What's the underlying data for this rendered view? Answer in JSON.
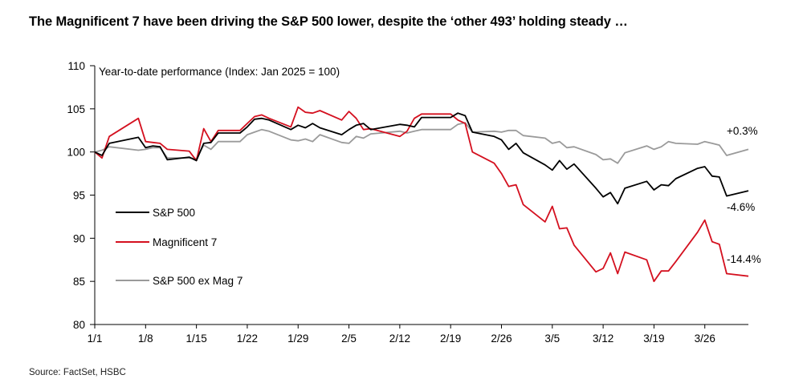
{
  "title": "The Magnificent 7 have been driving the S&P 500 lower, despite the ‘other 493’ holding steady …",
  "source": "Source: FactSet, HSBC",
  "colors": {
    "sp500": "#000000",
    "mag7": "#d4101f",
    "ex_mag7": "#9a9a9a",
    "axis": "#000000"
  },
  "chart_data": {
    "type": "line",
    "title": "Year-to-date performance (Index: Jan 2025 = 100)",
    "xlabel": "",
    "ylabel": "",
    "ylim": [
      80,
      110
    ],
    "yticks": [
      80,
      85,
      90,
      95,
      100,
      105,
      110
    ],
    "xticks": [
      {
        "x": 0,
        "label": "1/1"
      },
      {
        "x": 7,
        "label": "1/8"
      },
      {
        "x": 14,
        "label": "1/15"
      },
      {
        "x": 21,
        "label": "1/22"
      },
      {
        "x": 28,
        "label": "1/29"
      },
      {
        "x": 35,
        "label": "2/5"
      },
      {
        "x": 42,
        "label": "2/12"
      },
      {
        "x": 49,
        "label": "2/19"
      },
      {
        "x": 56,
        "label": "2/26"
      },
      {
        "x": 63,
        "label": "3/5"
      },
      {
        "x": 70,
        "label": "3/12"
      },
      {
        "x": 77,
        "label": "3/19"
      },
      {
        "x": 84,
        "label": "3/26"
      }
    ],
    "x": [
      0,
      1,
      2,
      6,
      7,
      8,
      9,
      10,
      13,
      14,
      15,
      16,
      17,
      20,
      21,
      22,
      23,
      24,
      27,
      28,
      29,
      30,
      31,
      34,
      35,
      36,
      37,
      38,
      42,
      43,
      44,
      45,
      48,
      49,
      50,
      51,
      52,
      55,
      56,
      57,
      58,
      59,
      62,
      63,
      64,
      65,
      66,
      69,
      70,
      71,
      72,
      73,
      76,
      77,
      78,
      79,
      80,
      83,
      84,
      85,
      86,
      87,
      90
    ],
    "series": [
      {
        "name": "S&P 500",
        "end_label": "-4.6%",
        "values": [
          100.0,
          99.6,
          101.0,
          101.7,
          100.5,
          100.7,
          100.6,
          99.1,
          99.4,
          99.0,
          101.0,
          101.1,
          102.2,
          102.2,
          102.9,
          103.8,
          103.9,
          103.7,
          102.6,
          103.1,
          102.8,
          103.3,
          102.8,
          102.0,
          102.6,
          103.1,
          103.3,
          102.6,
          103.2,
          103.1,
          102.9,
          104.0,
          104.0,
          104.0,
          104.5,
          104.2,
          102.3,
          101.8,
          101.4,
          100.3,
          101.0,
          99.9,
          98.5,
          97.9,
          99.0,
          98.0,
          98.6,
          95.8,
          94.8,
          95.3,
          94.0,
          95.8,
          96.6,
          95.6,
          96.2,
          96.1,
          96.9,
          98.1,
          98.3,
          97.2,
          97.1,
          94.9,
          95.5
        ]
      },
      {
        "name": "Magnificent 7",
        "end_label": "-14.4%",
        "values": [
          100.0,
          99.3,
          101.8,
          103.9,
          101.2,
          101.1,
          101.0,
          100.3,
          100.1,
          99.0,
          102.7,
          101.2,
          102.5,
          102.5,
          103.3,
          104.1,
          104.3,
          103.9,
          102.9,
          105.2,
          104.6,
          104.5,
          104.8,
          103.7,
          104.7,
          103.9,
          102.6,
          102.7,
          101.8,
          102.4,
          103.9,
          104.4,
          104.4,
          104.4,
          103.7,
          103.3,
          100.0,
          98.7,
          97.5,
          96.0,
          96.2,
          93.9,
          91.9,
          93.7,
          91.1,
          91.2,
          89.2,
          86.1,
          86.5,
          88.3,
          85.9,
          88.4,
          87.5,
          85.0,
          86.2,
          86.2,
          87.3,
          90.7,
          92.1,
          89.6,
          89.3,
          85.9,
          85.6
        ]
      },
      {
        "name": "S&P 500 ex Mag 7",
        "end_label": "+0.3%",
        "values": [
          100.0,
          100.2,
          100.6,
          100.2,
          100.3,
          100.5,
          100.5,
          99.3,
          99.3,
          99.2,
          100.8,
          100.3,
          101.2,
          101.2,
          102.0,
          102.3,
          102.6,
          102.4,
          101.4,
          101.3,
          101.5,
          101.2,
          102.0,
          101.1,
          101.0,
          101.8,
          101.6,
          102.1,
          102.4,
          102.2,
          102.4,
          102.6,
          102.6,
          102.6,
          103.2,
          103.4,
          102.3,
          102.4,
          102.3,
          102.5,
          102.5,
          101.9,
          101.6,
          101.0,
          101.2,
          100.5,
          100.6,
          99.7,
          99.1,
          99.2,
          98.7,
          99.9,
          100.7,
          100.3,
          100.6,
          101.2,
          101.0,
          100.9,
          101.2,
          101.0,
          100.8,
          99.6,
          100.3
        ]
      }
    ],
    "legend": {
      "placement": "left-middle"
    },
    "grid": false
  }
}
